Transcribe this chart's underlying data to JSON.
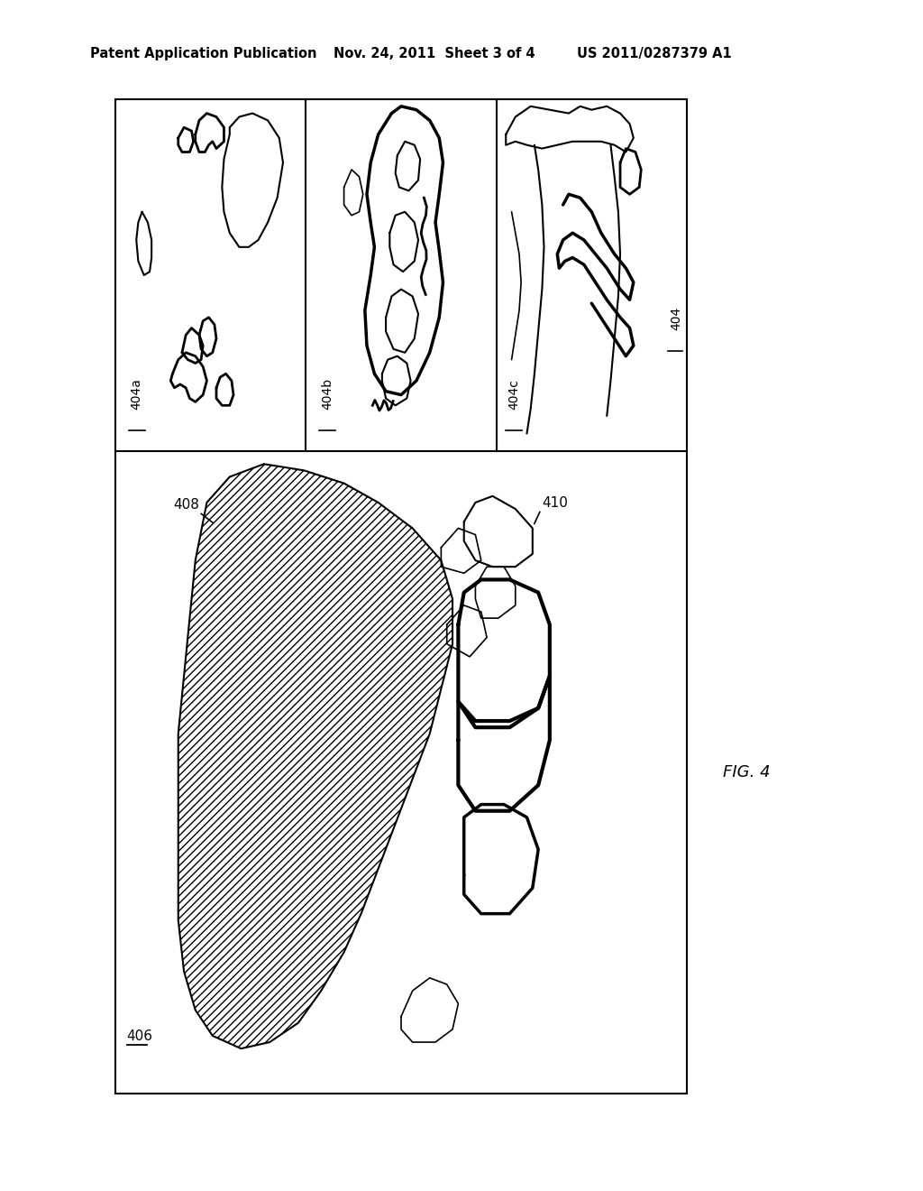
{
  "title_left": "Patent Application Publication",
  "title_mid": "Nov. 24, 2011  Sheet 3 of 4",
  "title_right": "US 2011/0287379 A1",
  "fig_label": "FIG. 4",
  "bg_color": "#ffffff"
}
